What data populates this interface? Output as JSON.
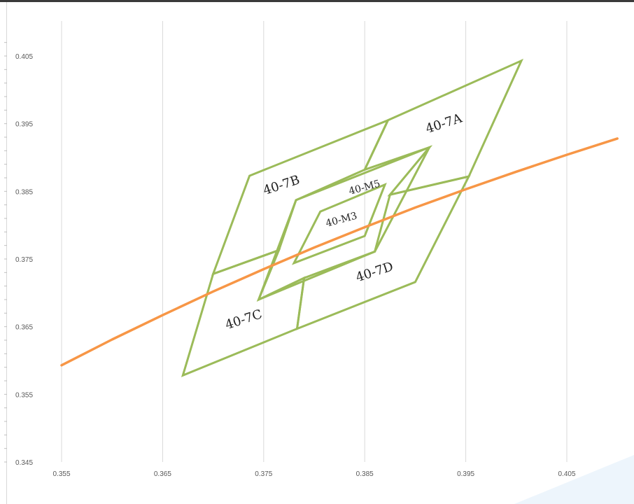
{
  "chart_data": {
    "type": "line",
    "title": "",
    "xlabel": "",
    "ylabel": "",
    "xlim": [
      0.355,
      0.41
    ],
    "ylim": [
      0.345,
      0.408
    ],
    "x_ticks": [
      "0.355",
      "0.365",
      "0.375",
      "0.385",
      "0.395",
      "0.405"
    ],
    "y_ticks": [
      "0.405",
      "0.395",
      "0.385",
      "0.375",
      "0.365",
      "0.355",
      "0.345"
    ],
    "grid": "vertical",
    "colors": {
      "regions": "#9bbb59",
      "curve": "#f79646",
      "grid": "#d9d9d9",
      "text": "#595959"
    },
    "regions": [
      {
        "name": "40-7A",
        "points": [
          [
            0.3873,
            0.3955
          ],
          [
            0.4005,
            0.4043
          ],
          [
            0.3953,
            0.3872
          ],
          [
            0.3875,
            0.3845
          ],
          [
            0.3914,
            0.3915
          ],
          [
            0.385,
            0.3882
          ]
        ]
      },
      {
        "name": "40-7B",
        "points": [
          [
            0.3736,
            0.3873
          ],
          [
            0.3873,
            0.3955
          ],
          [
            0.385,
            0.3882
          ],
          [
            0.3782,
            0.3837
          ],
          [
            0.3765,
            0.3763
          ],
          [
            0.37,
            0.3728
          ]
        ]
      },
      {
        "name": "40-7C",
        "points": [
          [
            0.37,
            0.3728
          ],
          [
            0.3765,
            0.3763
          ],
          [
            0.3745,
            0.369
          ],
          [
            0.379,
            0.3722
          ],
          [
            0.3783,
            0.3647
          ],
          [
            0.367,
            0.3578
          ]
        ]
      },
      {
        "name": "40-7D",
        "points": [
          [
            0.379,
            0.3722
          ],
          [
            0.386,
            0.3761
          ],
          [
            0.3875,
            0.3845
          ],
          [
            0.3953,
            0.3872
          ],
          [
            0.39,
            0.3716
          ],
          [
            0.3783,
            0.3647
          ]
        ]
      },
      {
        "name": "40-M5",
        "points": [
          [
            0.3782,
            0.3837
          ],
          [
            0.3914,
            0.3915
          ],
          [
            0.386,
            0.3761
          ],
          [
            0.3745,
            0.369
          ]
        ]
      },
      {
        "name": "40-M3",
        "points": [
          [
            0.3806,
            0.382
          ],
          [
            0.387,
            0.386
          ],
          [
            0.385,
            0.3784
          ],
          [
            0.378,
            0.3744
          ]
        ]
      }
    ],
    "series": [
      {
        "x": [
          0.355,
          0.36,
          0.365,
          0.37,
          0.375,
          0.38,
          0.385,
          0.39,
          0.395,
          0.4,
          0.405,
          0.41
        ],
        "y": [
          0.3593,
          0.3631,
          0.3667,
          0.3702,
          0.3735,
          0.3767,
          0.3797,
          0.3826,
          0.3853,
          0.3879,
          0.3904,
          0.3928
        ]
      }
    ]
  }
}
